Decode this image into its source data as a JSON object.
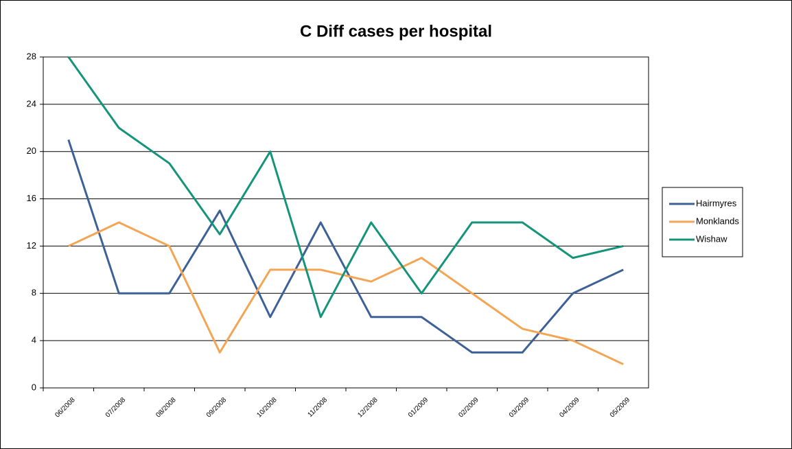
{
  "chart_data": {
    "type": "line",
    "title": "C Diff cases per hospital",
    "categories": [
      "06/2008",
      "07/2008",
      "08/2008",
      "09/2008",
      "10/2008",
      "11/2008",
      "12/2008",
      "01/2009",
      "02/2009",
      "03/2009",
      "04/2009",
      "05/2009"
    ],
    "series": [
      {
        "name": "Hairmyres",
        "color": "#3d6196",
        "values": [
          21,
          8,
          8,
          15,
          6,
          14,
          6,
          6,
          3,
          3,
          8,
          10
        ]
      },
      {
        "name": "Monklands",
        "color": "#f4a553",
        "values": [
          12,
          14,
          12,
          3,
          10,
          10,
          9,
          11,
          8,
          5,
          4,
          2
        ]
      },
      {
        "name": "Wishaw",
        "color": "#14947a",
        "values": [
          28,
          22,
          19,
          13,
          20,
          6,
          14,
          8,
          14,
          14,
          11,
          12
        ]
      }
    ],
    "ylim": [
      0,
      28
    ],
    "yticks": [
      0,
      4,
      8,
      12,
      16,
      20,
      24,
      28
    ],
    "grid": true,
    "legend": "right"
  }
}
